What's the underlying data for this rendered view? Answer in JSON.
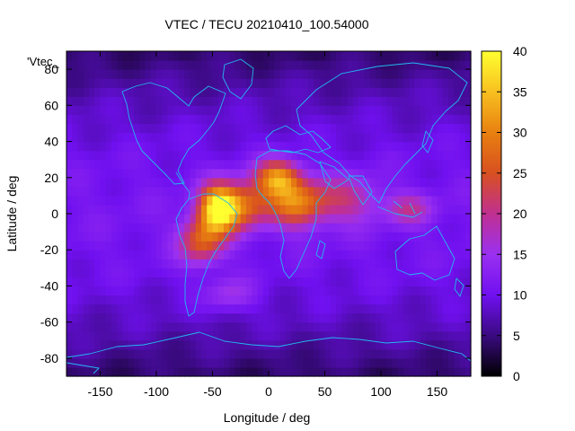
{
  "chart_data": {
    "type": "heatmap",
    "title": "VTEC / TECU 20210410_100.54000",
    "xlabel": "Longitude / deg",
    "ylabel": "Latitude / deg",
    "xlim": [
      -180,
      180
    ],
    "ylim": [
      -90,
      90
    ],
    "xticks": [
      -150,
      -100,
      -50,
      0,
      50,
      100,
      150
    ],
    "yticks": [
      -80,
      -60,
      -40,
      -20,
      0,
      20,
      40,
      60,
      80
    ],
    "key_label": "'Vtec_",
    "colorbar": {
      "range": [
        0,
        40
      ],
      "ticks": [
        0,
        5,
        10,
        15,
        20,
        25,
        30,
        35,
        40
      ],
      "palette": [
        "#000000",
        "#3a0a80",
        "#7010f0",
        "#9a30f0",
        "#c03090",
        "#d85020",
        "#e88010",
        "#f8c020",
        "#ffff30"
      ]
    },
    "grid_step_deg": 5,
    "blobs": [
      {
        "name": "equatorial-peak-americas",
        "lon": -45,
        "lat": 3,
        "value": 29,
        "sigma_lon": 12,
        "sigma_lat": 9
      },
      {
        "name": "equatorial-atlantic",
        "lon": -22,
        "lat": 5,
        "value": 15,
        "sigma_lon": 15,
        "sigma_lat": 9
      },
      {
        "name": "north-africa-crest",
        "lon": 8,
        "lat": 20,
        "value": 20,
        "sigma_lon": 14,
        "sigma_lat": 7
      },
      {
        "name": "central-africa",
        "lon": 25,
        "lat": 6,
        "value": 18,
        "sigma_lon": 18,
        "sigma_lat": 9
      },
      {
        "name": "south-america-south-crest",
        "lon": -60,
        "lat": -15,
        "value": 15,
        "sigma_lon": 14,
        "sigma_lat": 9
      },
      {
        "name": "indian-ocean-tail",
        "lon": 70,
        "lat": 8,
        "value": 9,
        "sigma_lon": 20,
        "sigma_lat": 9
      },
      {
        "name": "maritime-continent",
        "lon": 125,
        "lat": 3,
        "value": 8,
        "sigma_lon": 15,
        "sigma_lat": 6
      },
      {
        "name": "south-atlantic",
        "lon": -35,
        "lat": -45,
        "value": 6,
        "sigma_lon": 16,
        "sigma_lat": 7
      }
    ],
    "background_tec": 11
  }
}
